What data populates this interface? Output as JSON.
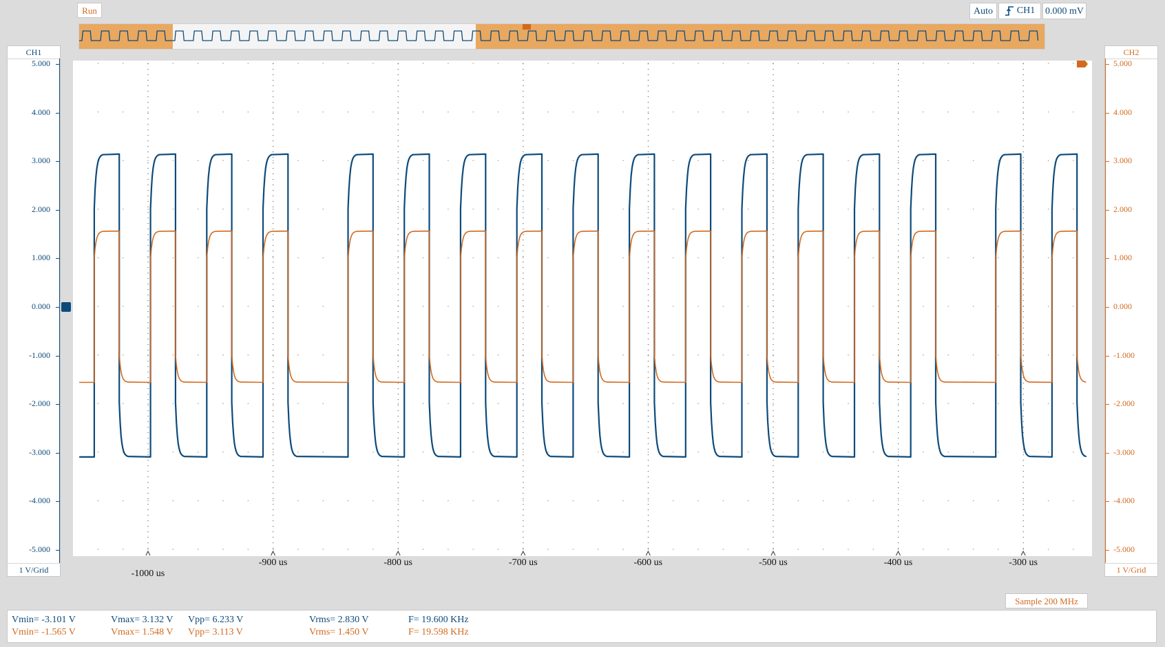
{
  "toolbar": {
    "run_label": "Run",
    "trigger_mode": "Auto",
    "trigger_edge_icon": "rising-edge-icon",
    "trigger_source": "CH1",
    "trigger_level": "0.000 mV"
  },
  "colors": {
    "ch1": "#0d4a7a",
    "ch2": "#d2691e",
    "overview_highlight": "#e8a860",
    "background": "#dcdcdc"
  },
  "ch1_axis": {
    "title": "CH1",
    "ticks": [
      "5.000",
      "4.000",
      "3.000",
      "2.000",
      "1.000",
      "0.000",
      "-1.000",
      "-2.000",
      "-3.000",
      "-4.000",
      "-5.000"
    ],
    "scale": "1 V/Grid"
  },
  "ch2_axis": {
    "title": "CH2",
    "ticks": [
      "5.000",
      "4.000",
      "3.000",
      "2.000",
      "1.000",
      "0.000",
      "-1.000",
      "-2.000",
      "-3.000",
      "-4.000",
      "-5.000"
    ],
    "scale": "1 V/Grid"
  },
  "x_axis": {
    "labels": [
      "-1000 us",
      "-900 us",
      "-800 us",
      "-700 us",
      "-600 us",
      "-500 us",
      "-400 us",
      "-300 us"
    ]
  },
  "chart_data": {
    "type": "line",
    "xlim": [
      -1060,
      -245
    ],
    "ylim": [
      -5,
      5
    ],
    "xlabel": "",
    "ylabel": "",
    "grid": true,
    "series": [
      {
        "name": "CH1",
        "pulses": [
          [
            -1043,
            -1023
          ],
          [
            -998,
            -978
          ],
          [
            -953,
            -933
          ],
          [
            -908,
            -888
          ],
          [
            -840,
            -820
          ],
          [
            -795,
            -775
          ],
          [
            -750,
            -730
          ],
          [
            -705,
            -685
          ],
          [
            -660,
            -640
          ],
          [
            -615,
            -595
          ],
          [
            -570,
            -550
          ],
          [
            -525,
            -505
          ],
          [
            -480,
            -460
          ],
          [
            -435,
            -415
          ],
          [
            -390,
            -370
          ],
          [
            -322,
            -302
          ],
          [
            -277,
            -257
          ]
        ],
        "high": 3.132,
        "low": -3.101,
        "x_start": -1055,
        "x_end": -250
      },
      {
        "name": "CH2",
        "pulses": [
          [
            -1043,
            -1023
          ],
          [
            -998,
            -978
          ],
          [
            -953,
            -933
          ],
          [
            -908,
            -888
          ],
          [
            -840,
            -820
          ],
          [
            -795,
            -775
          ],
          [
            -750,
            -730
          ],
          [
            -705,
            -685
          ],
          [
            -660,
            -640
          ],
          [
            -615,
            -595
          ],
          [
            -570,
            -550
          ],
          [
            -525,
            -505
          ],
          [
            -480,
            -460
          ],
          [
            -435,
            -415
          ],
          [
            -390,
            -370
          ],
          [
            -322,
            -302
          ],
          [
            -277,
            -257
          ]
        ],
        "high": 1.548,
        "low": -1.565,
        "x_start": -1055,
        "x_end": -250
      }
    ]
  },
  "footer": {
    "sample": "Sample 200 MHz"
  },
  "measurements": {
    "ch1": {
      "vmin": "Vmin= -3.101 V",
      "vmax": "Vmax= 3.132 V",
      "vpp": "Vpp= 6.233 V",
      "vrms": "Vrms= 2.830 V",
      "freq": "F= 19.600 KHz"
    },
    "ch2": {
      "vmin": "Vmin= -1.565 V",
      "vmax": "Vmax= 1.548 V",
      "vpp": "Vpp= 3.113 V",
      "vrms": "Vrms= 1.450 V",
      "freq": "F= 19.598 KHz"
    }
  }
}
